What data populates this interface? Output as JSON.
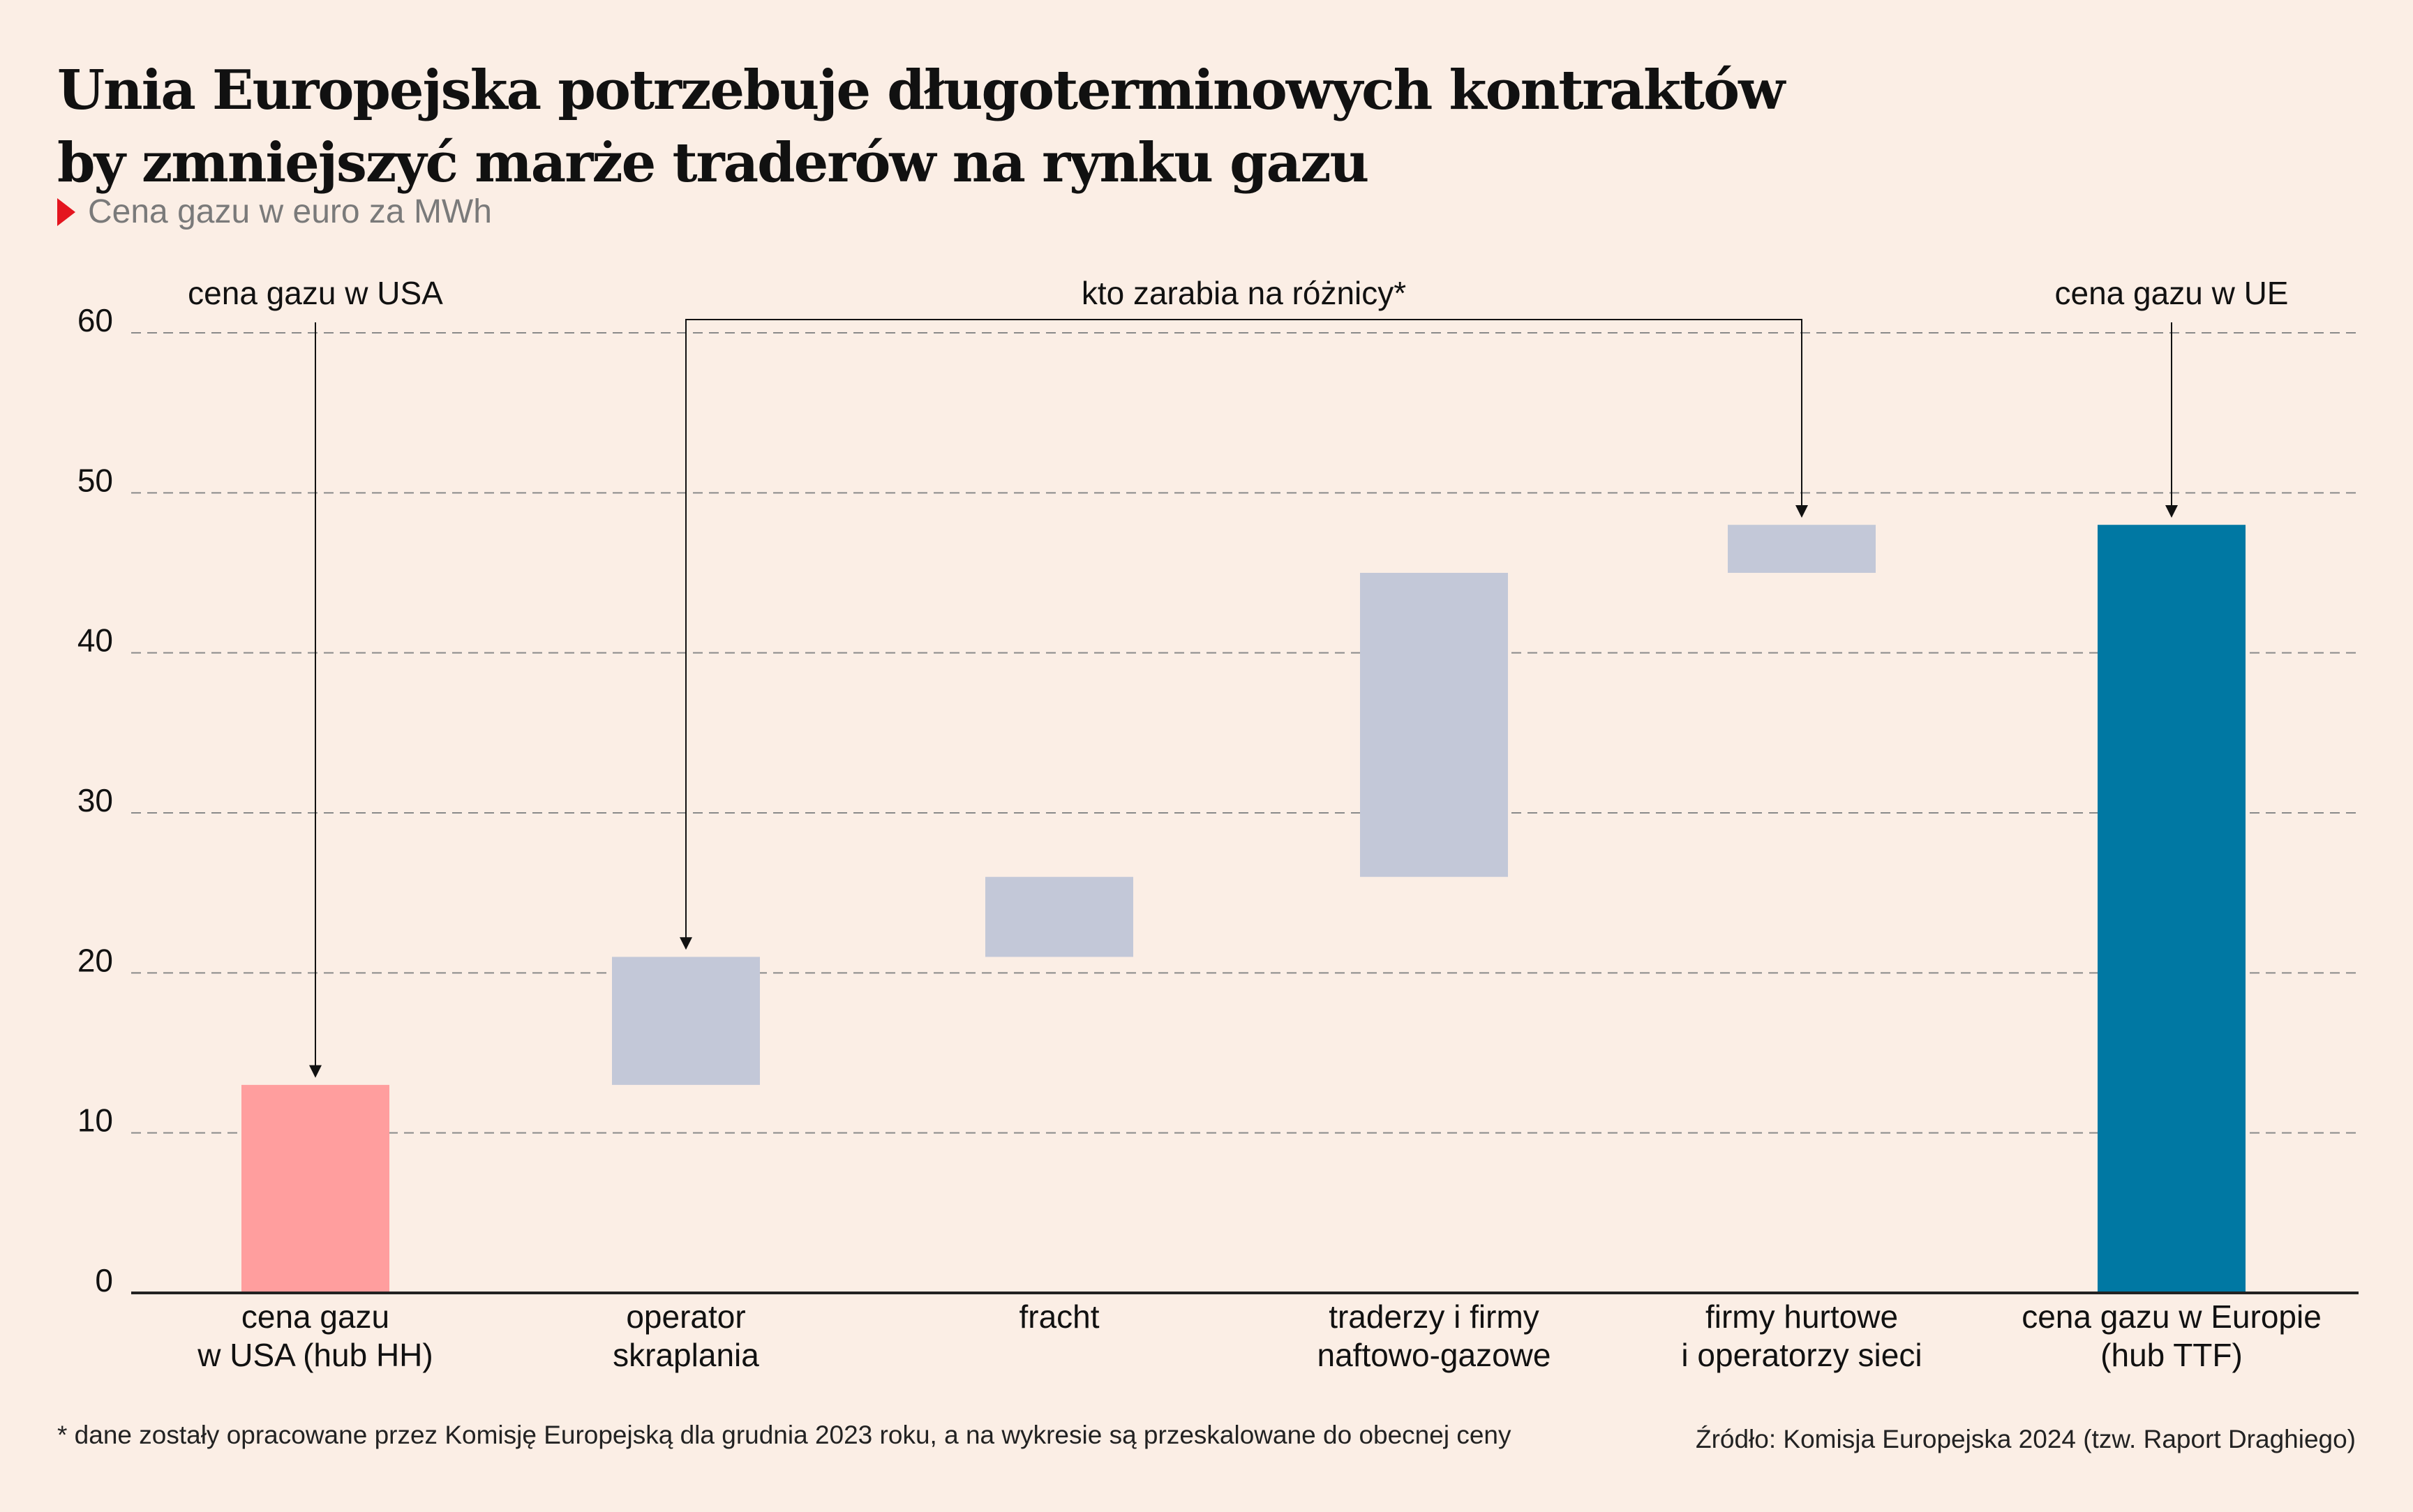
{
  "title": {
    "line1": "Unia Europejska potrzebuje długoterminowych kontraktów",
    "line2": "by zmniejszyć marże traderów na rynku gazu"
  },
  "subtitle": "Cena gazu w euro za MWh",
  "footnote": "* dane zostały opracowane przez Komisję Europejską dla grudnia 2023 roku, a na wykresie są przeskalowane do obecnej ceny",
  "source": "Źródło: Komisja Europejska 2024 (tzw. Raport Draghiego)",
  "colors": {
    "background": "#FBEEE5",
    "start_bar": "#FF9E9E",
    "intermediate_bar": "#C3C8D8",
    "total_bar": "#0078A3",
    "grid": "#8a8a8a",
    "text": "#111111"
  },
  "chart_data": {
    "type": "bar",
    "subtype": "waterfall",
    "ylim": [
      0,
      60
    ],
    "yticks": [
      "0",
      "10",
      "20",
      "30",
      "40",
      "50",
      "60"
    ],
    "ytick_values": [
      0,
      10,
      20,
      30,
      40,
      50,
      60
    ],
    "grid": true,
    "categories": [
      [
        "cena gazu",
        "w USA (hub HH)"
      ],
      [
        "operator",
        "skraplania"
      ],
      [
        "fracht"
      ],
      [
        "traderzy i firmy",
        "naftowo-gazowe"
      ],
      [
        "firmy hurtowe",
        "i operatorzy sieci"
      ],
      [
        "cena gazu w Europie",
        "(hub TTF)"
      ]
    ],
    "bars": [
      {
        "start": 0,
        "end": 13,
        "kind": "start"
      },
      {
        "start": 13,
        "end": 21,
        "kind": "intermediate"
      },
      {
        "start": 21,
        "end": 26,
        "kind": "intermediate"
      },
      {
        "start": 26,
        "end": 45,
        "kind": "intermediate"
      },
      {
        "start": 45,
        "end": 48,
        "kind": "intermediate"
      },
      {
        "start": 0,
        "end": 48,
        "kind": "total"
      }
    ],
    "annotations": [
      {
        "text": "cena gazu w USA",
        "target": 0,
        "type": "single"
      },
      {
        "text": "kto zarabia na różnicy*",
        "target": [
          1,
          4
        ],
        "type": "bracket"
      },
      {
        "text": "cena gazu w UE",
        "target": 5,
        "type": "single"
      }
    ]
  }
}
